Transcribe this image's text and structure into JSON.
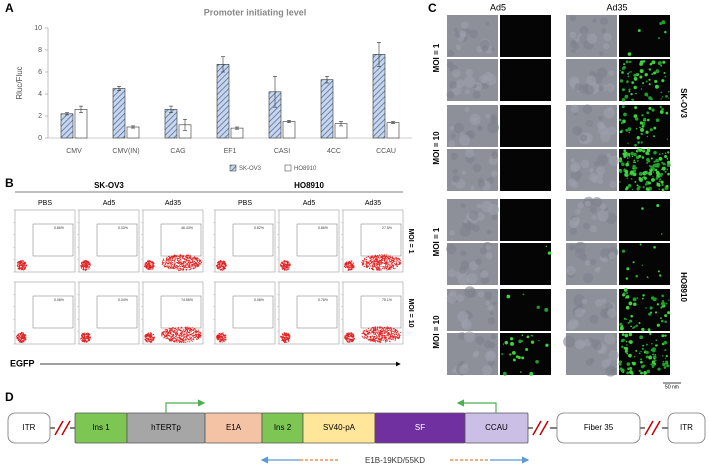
{
  "panel_labels": [
    "A",
    "B",
    "C",
    "D"
  ],
  "chart_data": {
    "type": "bar",
    "title": "Promoter initiating level",
    "y_label": "Rluc/Fluc",
    "categories": [
      "CMV",
      "CMV(IN)",
      "CAG",
      "EF1",
      "CASI",
      "4CC",
      "CCAU"
    ],
    "series": [
      {
        "name": "SK-OV3",
        "color": "#4f6fa8",
        "pattern": "hatch",
        "values": [
          2.2,
          4.5,
          2.6,
          6.7,
          4.2,
          5.3,
          7.6
        ],
        "errors": [
          0.1,
          0.2,
          0.3,
          0.7,
          1.4,
          0.3,
          1.1
        ]
      },
      {
        "name": "HO8910",
        "color": "#ffffff",
        "values": [
          2.6,
          1.0,
          1.2,
          0.9,
          1.5,
          1.3,
          1.4
        ],
        "errors": [
          0.3,
          0.1,
          0.5,
          0.1,
          0.1,
          0.2,
          0.1
        ]
      }
    ],
    "ylim": [
      0,
      10
    ],
    "yticks": [
      0,
      2,
      4,
      6,
      8,
      10
    ],
    "legend": "bottom"
  },
  "flow": {
    "groups": [
      "SK-OV3",
      "HO8910"
    ],
    "columns": [
      "PBS",
      "Ad5",
      "Ad35",
      "PBS",
      "Ad5",
      "Ad35"
    ],
    "rows": [
      "MOI = 1",
      "MOI = 10"
    ],
    "gates": [
      [
        "0.86%",
        "0.03%",
        "46.43%",
        "0.82%",
        "0.86%",
        "27.5%"
      ],
      [
        "0.08%",
        "0.04%",
        "74.56%",
        "0.08%",
        "0.76%",
        "75.1%"
      ]
    ],
    "x_label": "EGFP"
  },
  "microscopy": {
    "columns": [
      "Ad5",
      "Ad35"
    ],
    "cell_lines": [
      "SK-OV3",
      "HO8910"
    ],
    "rows": [
      "MOI = 1",
      "MOI = 10",
      "MOI = 1",
      "MOI = 10"
    ],
    "scale_bar": "50 nm"
  },
  "construct": {
    "elements": [
      {
        "label": "ITR",
        "color": "#ffffff"
      },
      {
        "label": "Ins 1",
        "color": "#7dc653"
      },
      {
        "label": "hTERTp",
        "color": "#a6a6a6"
      },
      {
        "label": "E1A",
        "color": "#f4c3a6"
      },
      {
        "label": "Ins 2",
        "color": "#7dc653"
      },
      {
        "label": "SV40-pA",
        "color": "#ffe699"
      },
      {
        "label": "SF",
        "color": "#7030a0"
      },
      {
        "label": "CCAU",
        "color": "#cbbfe6"
      },
      {
        "label": "Fiber 35",
        "color": "#ffffff"
      },
      {
        "label": "ITR",
        "color": "#ffffff"
      }
    ],
    "span_label": "E1B-19KD/55KD"
  }
}
